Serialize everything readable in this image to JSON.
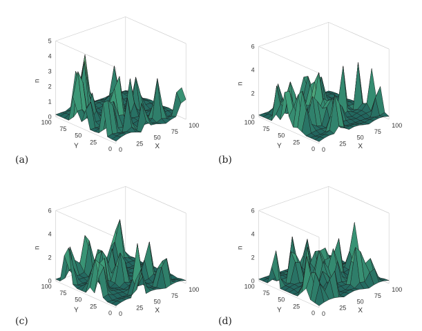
{
  "figure": {
    "panels": [
      {
        "label": "(a)",
        "xlabel": "X",
        "ylabel": "Y",
        "zlabel": "n",
        "xticks": [
          "0",
          "25",
          "50",
          "75",
          "100"
        ],
        "yticks": [
          "0",
          "25",
          "50",
          "75",
          "100"
        ],
        "zticks": [
          "0",
          "1",
          "2",
          "3",
          "4",
          "5"
        ],
        "zmax": 5,
        "peak_height": 4.0,
        "seed": 11
      },
      {
        "label": "(b)",
        "xlabel": "X",
        "ylabel": "Y",
        "zlabel": "n",
        "xticks": [
          "0",
          "25",
          "50",
          "75",
          "100"
        ],
        "yticks": [
          "0",
          "25",
          "50",
          "75",
          "100"
        ],
        "zticks": [
          "0",
          "2",
          "4",
          "6"
        ],
        "zmax": 6,
        "peak_height": 4.6,
        "seed": 23
      },
      {
        "label": "(c)",
        "xlabel": "X",
        "ylabel": "Y",
        "zlabel": "n",
        "xticks": [
          "0",
          "25",
          "50",
          "75",
          "100"
        ],
        "yticks": [
          "0",
          "25",
          "50",
          "75",
          "100"
        ],
        "zticks": [
          "0",
          "2",
          "4",
          "6"
        ],
        "zmax": 6,
        "peak_height": 4.8,
        "seed": 37
      },
      {
        "label": "(d)",
        "xlabel": "X",
        "ylabel": "Y",
        "zlabel": "n",
        "xticks": [
          "0",
          "25",
          "50",
          "75",
          "100"
        ],
        "yticks": [
          "0",
          "25",
          "50",
          "75",
          "100"
        ],
        "zticks": [
          "0",
          "2",
          "4",
          "6"
        ],
        "zmax": 6,
        "peak_height": 5.0,
        "seed": 53
      }
    ],
    "colors": {
      "low": "#1f5f5b",
      "mid": "#3f9f7a",
      "high": "#d8e27a",
      "edge": "#1a1a1a",
      "box": "#c8c8c8"
    }
  }
}
